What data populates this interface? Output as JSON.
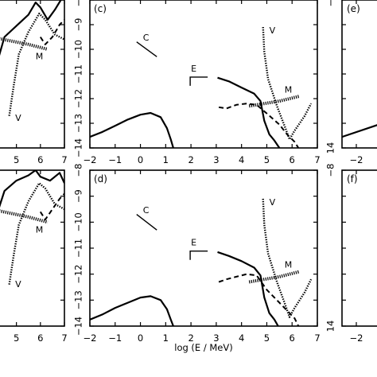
{
  "figure": {
    "xlabel": "log (E / MeV)",
    "panel_labels": [
      "(c)",
      "(e)",
      "(d)",
      "(f)"
    ]
  },
  "chart_data": [
    {
      "panel": "partial-left-top",
      "type": "line",
      "x_ticks": [
        5,
        6,
        7
      ],
      "xlim": [
        4.15,
        7.0
      ],
      "ylim": [
        14,
        8
      ],
      "curves": [
        {
          "style": "solid",
          "points": [
            [
              4.15,
              11.3
            ],
            [
              4.5,
              12.5
            ],
            [
              5.0,
              12.95
            ],
            [
              5.5,
              13.4
            ],
            [
              5.8,
              13.9
            ],
            [
              6.0,
              13.7
            ],
            [
              6.3,
              13.2
            ],
            [
              6.6,
              13.6
            ],
            [
              6.85,
              14.0
            ]
          ]
        },
        {
          "style": "dotted",
          "points": [
            [
              4.7,
              9.3
            ],
            [
              4.9,
              10.6
            ],
            [
              5.1,
              11.8
            ],
            [
              5.5,
              12.7
            ],
            [
              5.95,
              13.45
            ],
            [
              6.2,
              13.2
            ],
            [
              6.6,
              12.6
            ],
            [
              7.0,
              12.4
            ]
          ]
        },
        {
          "style": "dashed",
          "points": [
            [
              6.0,
              12.5
            ],
            [
              6.2,
              12.2
            ],
            [
              6.5,
              12.5
            ],
            [
              6.8,
              13.0
            ],
            [
              7.0,
              13.2
            ]
          ]
        },
        {
          "style": "hatched",
          "points": [
            [
              4.2,
              12.45
            ],
            [
              5.5,
              12.2
            ],
            [
              6.3,
              12.0
            ]
          ]
        }
      ],
      "annotations": [
        {
          "text": "V",
          "x": 4.95,
          "y": 9.1
        },
        {
          "text": "M",
          "x": 5.8,
          "y": 11.6
        }
      ]
    },
    {
      "panel": "(c)",
      "type": "line",
      "x_ticks": [
        -2,
        -1,
        0,
        1,
        2,
        3,
        4,
        5,
        6,
        7
      ],
      "y_ticks": [
        -8,
        -9,
        -10,
        -11,
        -12,
        -13,
        -14
      ],
      "xlim": [
        -2,
        7
      ],
      "ylim": [
        -8,
        -14
      ],
      "curves": [
        {
          "style": "solid",
          "points": [
            [
              -2,
              -13.55
            ],
            [
              -1.5,
              -13.35
            ],
            [
              -1,
              -13.1
            ],
            [
              -0.5,
              -12.85
            ],
            [
              0,
              -12.65
            ],
            [
              0.4,
              -12.58
            ],
            [
              0.8,
              -12.75
            ],
            [
              1.05,
              -13.2
            ],
            [
              1.2,
              -13.65
            ],
            [
              1.3,
              -14.0
            ]
          ]
        },
        {
          "style": "solid",
          "points": [
            [
              3.05,
              -11.15
            ],
            [
              3.5,
              -11.3
            ],
            [
              4.0,
              -11.55
            ],
            [
              4.5,
              -11.8
            ],
            [
              4.75,
              -12.1
            ],
            [
              4.9,
              -12.9
            ],
            [
              5.1,
              -13.45
            ],
            [
              5.3,
              -13.7
            ],
            [
              5.5,
              -14.0
            ]
          ]
        },
        {
          "style": "dotted",
          "points": [
            [
              4.85,
              -9.1
            ],
            [
              4.9,
              -10.1
            ],
            [
              5.05,
              -11.2
            ],
            [
              5.4,
              -12.3
            ],
            [
              5.7,
              -13.1
            ],
            [
              5.9,
              -13.65
            ],
            [
              6.1,
              -13.3
            ],
            [
              6.5,
              -12.7
            ],
            [
              6.75,
              -12.2
            ]
          ]
        },
        {
          "style": "dashed",
          "points": [
            [
              3.1,
              -12.35
            ],
            [
              3.4,
              -12.4
            ],
            [
              3.8,
              -12.25
            ],
            [
              4.2,
              -12.2
            ],
            [
              4.6,
              -12.25
            ],
            [
              5.0,
              -12.6
            ],
            [
              5.5,
              -13.05
            ],
            [
              5.8,
              -13.45
            ],
            [
              6.1,
              -13.75
            ],
            [
              6.25,
              -14.0
            ]
          ]
        },
        {
          "style": "hatched",
          "points": [
            [
              4.3,
              -12.3
            ],
            [
              5.5,
              -12.1
            ],
            [
              6.3,
              -11.9
            ]
          ]
        }
      ],
      "segments": [
        {
          "style": "solid",
          "points": [
            [
              -0.15,
              -9.7
            ],
            [
              0.65,
              -10.3
            ]
          ]
        }
      ],
      "annotations": [
        {
          "text": "C",
          "x": 0.1,
          "y": -9.65
        },
        {
          "text": "E",
          "x": 2.0,
          "y": -10.9
        },
        {
          "text": "V",
          "x": 5.1,
          "y": -9.35
        },
        {
          "text": "M",
          "x": 5.7,
          "y": -11.75
        }
      ]
    },
    {
      "panel": "(e)",
      "type": "line",
      "x_ticks": [
        -2
      ],
      "xlim": [
        -2.3,
        -1.3
      ],
      "ylim": [
        -8,
        -14
      ],
      "curves": [
        {
          "style": "solid",
          "points": [
            [
              -2.3,
              -13.55
            ],
            [
              -1.3,
              -12.9
            ]
          ]
        }
      ]
    },
    {
      "panel": "partial-left-bottom",
      "type": "line",
      "x_ticks": [
        5,
        6,
        7
      ],
      "xlim": [
        4.15,
        7.0
      ],
      "ylim": [
        14,
        8
      ],
      "curves": [
        {
          "style": "solid",
          "points": [
            [
              4.15,
              12.2
            ],
            [
              4.5,
              13.2
            ],
            [
              5.0,
              13.6
            ],
            [
              5.5,
              13.8
            ],
            [
              5.8,
              14.0
            ],
            [
              6.0,
              13.75
            ],
            [
              6.4,
              13.6
            ],
            [
              6.8,
              13.9
            ],
            [
              7.0,
              13.5
            ]
          ]
        },
        {
          "style": "dotted",
          "points": [
            [
              4.7,
              9.6
            ],
            [
              4.9,
              10.8
            ],
            [
              5.1,
              11.9
            ],
            [
              5.5,
              12.8
            ],
            [
              5.95,
              13.5
            ],
            [
              6.2,
              13.3
            ],
            [
              6.6,
              12.7
            ],
            [
              7.0,
              12.5
            ]
          ]
        },
        {
          "style": "dashed",
          "points": [
            [
              6.0,
              12.4
            ],
            [
              6.2,
              12.1
            ],
            [
              6.5,
              12.5
            ],
            [
              6.8,
              12.9
            ],
            [
              7.0,
              13.1
            ]
          ]
        },
        {
          "style": "hatched",
          "points": [
            [
              4.2,
              12.45
            ],
            [
              5.5,
              12.2
            ],
            [
              6.3,
              12.0
            ]
          ]
        }
      ],
      "annotations": [
        {
          "text": "V",
          "x": 4.95,
          "y": 9.5
        },
        {
          "text": "M",
          "x": 5.8,
          "y": 11.6
        }
      ]
    },
    {
      "panel": "(d)",
      "type": "line",
      "x_ticks": [
        -2,
        -1,
        0,
        1,
        2,
        3,
        4,
        5,
        6,
        7
      ],
      "y_ticks": [
        -8,
        -9,
        -10,
        -11,
        -12,
        -13,
        -14
      ],
      "xlim": [
        -2,
        7
      ],
      "ylim": [
        -8,
        -14
      ],
      "curves": [
        {
          "style": "solid",
          "points": [
            [
              -2,
              -13.75
            ],
            [
              -1.5,
              -13.55
            ],
            [
              -1,
              -13.3
            ],
            [
              -0.5,
              -13.1
            ],
            [
              0,
              -12.9
            ],
            [
              0.4,
              -12.85
            ],
            [
              0.8,
              -13.0
            ],
            [
              1.05,
              -13.35
            ],
            [
              1.2,
              -13.75
            ],
            [
              1.3,
              -14.0
            ]
          ]
        },
        {
          "style": "solid",
          "points": [
            [
              3.05,
              -11.15
            ],
            [
              3.5,
              -11.3
            ],
            [
              4.0,
              -11.5
            ],
            [
              4.5,
              -11.75
            ],
            [
              4.75,
              -12.05
            ],
            [
              4.9,
              -12.9
            ],
            [
              5.1,
              -13.5
            ],
            [
              5.3,
              -13.75
            ],
            [
              5.45,
              -14.0
            ]
          ]
        },
        {
          "style": "dotted",
          "points": [
            [
              4.85,
              -9.1
            ],
            [
              4.9,
              -10.1
            ],
            [
              5.05,
              -11.2
            ],
            [
              5.4,
              -12.3
            ],
            [
              5.7,
              -13.1
            ],
            [
              5.9,
              -13.65
            ],
            [
              6.1,
              -13.3
            ],
            [
              6.5,
              -12.7
            ],
            [
              6.75,
              -12.2
            ]
          ]
        },
        {
          "style": "dashed",
          "points": [
            [
              3.1,
              -12.3
            ],
            [
              3.4,
              -12.2
            ],
            [
              3.8,
              -12.1
            ],
            [
              4.2,
              -12.0
            ],
            [
              4.6,
              -12.05
            ],
            [
              5.0,
              -12.6
            ],
            [
              5.5,
              -13.1
            ],
            [
              5.8,
              -13.4
            ],
            [
              6.1,
              -13.7
            ],
            [
              6.25,
              -14.0
            ]
          ]
        },
        {
          "style": "hatched",
          "points": [
            [
              4.3,
              -12.3
            ],
            [
              5.5,
              -12.1
            ],
            [
              6.3,
              -11.9
            ]
          ]
        }
      ],
      "segments": [
        {
          "style": "solid",
          "points": [
            [
              -0.15,
              -9.7
            ],
            [
              0.65,
              -10.3
            ]
          ]
        }
      ],
      "annotations": [
        {
          "text": "C",
          "x": 0.1,
          "y": -9.65
        },
        {
          "text": "E",
          "x": 2.0,
          "y": -10.9
        },
        {
          "text": "V",
          "x": 5.1,
          "y": -9.35
        },
        {
          "text": "M",
          "x": 5.7,
          "y": -11.75
        }
      ]
    },
    {
      "panel": "(f)",
      "type": "line",
      "x_ticks": [
        -2
      ],
      "xlim": [
        -2.3,
        -1.3
      ],
      "ylim": [
        -8,
        -14
      ],
      "curves": []
    }
  ]
}
